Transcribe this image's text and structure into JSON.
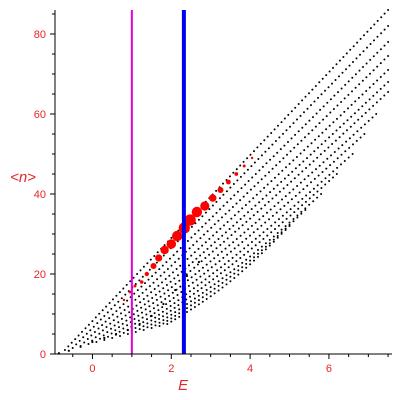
{
  "chart_data": {
    "type": "scatter",
    "xlabel": "E",
    "ylabel": "<n>",
    "xlim": [
      -0.95,
      7.6
    ],
    "ylim": [
      0,
      86
    ],
    "x_ticks": [
      0,
      2,
      4,
      6
    ],
    "y_ticks": [
      0,
      20,
      40,
      60,
      80
    ],
    "x_tick_labels": [
      "0",
      "2",
      "4",
      "6"
    ],
    "y_tick_labels": [
      "0",
      "20",
      "40",
      "60",
      "80"
    ],
    "grid": false,
    "vertical_lines": [
      {
        "x": 1.0,
        "color": "#e000e0"
      },
      {
        "x": 2.32,
        "color": "#0000ee"
      }
    ],
    "series": [
      {
        "marker": "small-dot",
        "color": "#000000",
        "description_of_pattern": "fan of near-linear point families rising from (-0.7, 1) toward (7.5, 85)",
        "families": [
          {
            "start": [
              -0.7,
              1.0
            ],
            "end": [
              7.5,
              86.0
            ]
          },
          {
            "start": [
              -0.5,
              1.5
            ],
            "end": [
              7.5,
              82.0
            ]
          },
          {
            "start": [
              -0.3,
              2.0
            ],
            "end": [
              7.5,
              78.0
            ]
          },
          {
            "start": [
              -0.1,
              2.5
            ],
            "end": [
              7.5,
              74.5
            ]
          },
          {
            "start": [
              0.1,
              3.0
            ],
            "end": [
              7.5,
              71.0
            ]
          },
          {
            "start": [
              0.3,
              3.5
            ],
            "end": [
              7.5,
              68.0
            ]
          },
          {
            "start": [
              0.5,
              4.0
            ],
            "end": [
              7.5,
              65.5
            ]
          },
          {
            "start": [
              0.7,
              4.5
            ],
            "end": [
              7.2,
              60.0
            ]
          },
          {
            "start": [
              0.9,
              5.0
            ],
            "end": [
              6.9,
              55.0
            ]
          },
          {
            "start": [
              1.1,
              5.5
            ],
            "end": [
              6.6,
              50.0
            ]
          },
          {
            "start": [
              1.3,
              6.0
            ],
            "end": [
              6.2,
              45.0
            ]
          },
          {
            "start": [
              1.5,
              6.5
            ],
            "end": [
              5.8,
              40.0
            ]
          },
          {
            "start": [
              1.7,
              7.0
            ],
            "end": [
              5.4,
              36.0
            ]
          },
          {
            "start": [
              1.9,
              7.5
            ],
            "end": [
              5.0,
              32.0
            ]
          }
        ],
        "low_chain": [
          {
            "x": -0.85,
            "y": 0.2
          },
          {
            "x": -0.6,
            "y": 0.8
          },
          {
            "x": -0.3,
            "y": 1.8
          },
          {
            "x": 0.0,
            "y": 3.0
          },
          {
            "x": 0.3,
            "y": 4.0
          },
          {
            "x": 0.6,
            "y": 5.0
          },
          {
            "x": 0.9,
            "y": 6.0
          },
          {
            "x": 1.2,
            "y": 7.5
          },
          {
            "x": 1.5,
            "y": 9.5
          },
          {
            "x": 1.8,
            "y": 12.5
          },
          {
            "x": 2.1,
            "y": 16.0
          },
          {
            "x": 2.4,
            "y": 19.5
          },
          {
            "x": 2.7,
            "y": 23.0
          }
        ]
      },
      {
        "marker": "circle",
        "color": "#ff0000",
        "points": [
          {
            "x": 0.8,
            "y": 13.5,
            "size": 1.2
          },
          {
            "x": 0.95,
            "y": 15.5,
            "size": 1.4
          },
          {
            "x": 1.08,
            "y": 17.0,
            "size": 1.5
          },
          {
            "x": 1.25,
            "y": 18.0,
            "size": 1.8
          },
          {
            "x": 1.38,
            "y": 20.0,
            "size": 2.2
          },
          {
            "x": 1.55,
            "y": 22.0,
            "size": 3.0
          },
          {
            "x": 1.68,
            "y": 24.0,
            "size": 3.6
          },
          {
            "x": 1.83,
            "y": 26.0,
            "size": 4.2
          },
          {
            "x": 2.0,
            "y": 27.5,
            "size": 4.8
          },
          {
            "x": 2.15,
            "y": 29.5,
            "size": 5.2
          },
          {
            "x": 2.33,
            "y": 31.5,
            "size": 5.6
          },
          {
            "x": 2.48,
            "y": 33.5,
            "size": 5.6
          },
          {
            "x": 2.65,
            "y": 35.5,
            "size": 5.2
          },
          {
            "x": 2.85,
            "y": 37.0,
            "size": 4.6
          },
          {
            "x": 3.05,
            "y": 39.0,
            "size": 3.8
          },
          {
            "x": 3.25,
            "y": 41.0,
            "size": 3.0
          },
          {
            "x": 3.45,
            "y": 43.0,
            "size": 2.4
          },
          {
            "x": 3.65,
            "y": 45.0,
            "size": 1.9
          },
          {
            "x": 3.85,
            "y": 47.0,
            "size": 1.5
          },
          {
            "x": 4.05,
            "y": 49.0,
            "size": 1.2
          }
        ]
      }
    ]
  }
}
